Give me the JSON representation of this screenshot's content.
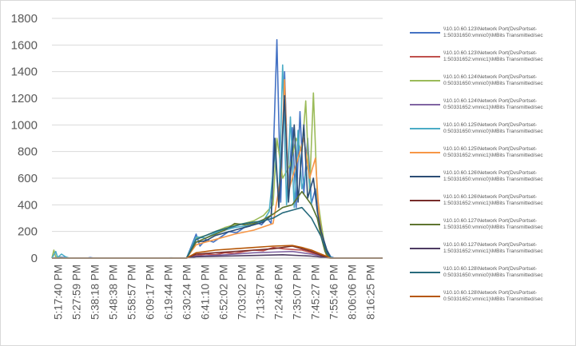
{
  "chart_data": {
    "type": "line",
    "title": "",
    "xlabel": "",
    "ylabel": "",
    "ylim": [
      0,
      1800
    ],
    "yticks": [
      0,
      200,
      400,
      600,
      800,
      1000,
      1200,
      1400,
      1600,
      1800
    ],
    "grid": "horizontal",
    "legend_position": "right",
    "x_tick_labels": [
      "5:17:40 PM",
      "5:27:59 PM",
      "5:38:18 PM",
      "5:48:38 PM",
      "5:58:57 PM",
      "6:09:17 PM",
      "6:19:44 PM",
      "6:30:24 PM",
      "6:41:10 PM",
      "6:52:02 PM",
      "7:03:02 PM",
      "7:13:57 PM",
      "7:24:46 PM",
      "7:35:07 PM",
      "7:45:27 PM",
      "7:55:46 PM",
      "8:06:06 PM",
      "8:16:25 PM"
    ],
    "series": [
      {
        "name": "\\\\10.10.60.123\\Network Port(DvsPortset-1:50331650:vmnic0)\\MBits Transmitted/sec",
        "color": "#4472c4",
        "points": [
          [
            0,
            0
          ],
          [
            4,
            8
          ],
          [
            6,
            5
          ],
          [
            10,
            0
          ],
          [
            14,
            0
          ],
          [
            18,
            0
          ],
          [
            20,
            4
          ],
          [
            22,
            0
          ],
          [
            26,
            0
          ],
          [
            30,
            0
          ],
          [
            34,
            0
          ],
          [
            38,
            0
          ],
          [
            42,
            0
          ],
          [
            46,
            0
          ],
          [
            50,
            0
          ],
          [
            54,
            0
          ],
          [
            58,
            0
          ],
          [
            62,
            2
          ],
          [
            66,
            0
          ],
          [
            70,
            0
          ],
          [
            75,
            180
          ],
          [
            77,
            90
          ],
          [
            80,
            140
          ],
          [
            84,
            120
          ],
          [
            88,
            160
          ],
          [
            92,
            200
          ],
          [
            96,
            190
          ],
          [
            100,
            230
          ],
          [
            103,
            240
          ],
          [
            106,
            270
          ],
          [
            109,
            250
          ],
          [
            112,
            300
          ],
          [
            114,
            260
          ],
          [
            117,
            1640
          ],
          [
            119,
            420
          ],
          [
            121,
            1400
          ],
          [
            123,
            500
          ],
          [
            125,
            980
          ],
          [
            127,
            380
          ],
          [
            129,
            1100
          ],
          [
            131,
            480
          ],
          [
            133,
            900
          ],
          [
            135,
            410
          ],
          [
            137,
            520
          ],
          [
            139,
            300
          ],
          [
            141,
            120
          ],
          [
            143,
            60
          ],
          [
            145,
            10
          ],
          [
            147,
            0
          ],
          [
            160,
            0
          ],
          [
            172,
            0
          ]
        ]
      },
      {
        "name": "\\\\10.10.60.123\\Network Port(DvsPortset-1:50331652:vmnic1)\\MBits Transmitted/sec",
        "color": "#c0504d",
        "points": [
          [
            0,
            0
          ],
          [
            10,
            0
          ],
          [
            30,
            0
          ],
          [
            50,
            0
          ],
          [
            70,
            0
          ],
          [
            75,
            20
          ],
          [
            80,
            30
          ],
          [
            85,
            25
          ],
          [
            90,
            40
          ],
          [
            95,
            35
          ],
          [
            100,
            50
          ],
          [
            105,
            60
          ],
          [
            110,
            55
          ],
          [
            115,
            80
          ],
          [
            120,
            70
          ],
          [
            125,
            65
          ],
          [
            130,
            60
          ],
          [
            135,
            40
          ],
          [
            140,
            20
          ],
          [
            145,
            0
          ],
          [
            160,
            0
          ],
          [
            172,
            0
          ]
        ]
      },
      {
        "name": "\\\\10.10.60.124\\Network Port(DvsPortset-0:50331650:vmnic0)\\MBits Transmitted/sec",
        "color": "#9bbb59",
        "points": [
          [
            0,
            0
          ],
          [
            1,
            60
          ],
          [
            2,
            10
          ],
          [
            4,
            5
          ],
          [
            6,
            0
          ],
          [
            10,
            0
          ],
          [
            30,
            0
          ],
          [
            50,
            0
          ],
          [
            70,
            0
          ],
          [
            75,
            150
          ],
          [
            80,
            170
          ],
          [
            85,
            200
          ],
          [
            90,
            230
          ],
          [
            95,
            250
          ],
          [
            100,
            260
          ],
          [
            105,
            280
          ],
          [
            110,
            320
          ],
          [
            115,
            400
          ],
          [
            117,
            900
          ],
          [
            120,
            600
          ],
          [
            124,
            700
          ],
          [
            127,
            900
          ],
          [
            130,
            800
          ],
          [
            132,
            1180
          ],
          [
            134,
            500
          ],
          [
            136,
            1240
          ],
          [
            138,
            460
          ],
          [
            140,
            260
          ],
          [
            142,
            80
          ],
          [
            144,
            10
          ],
          [
            146,
            0
          ],
          [
            160,
            0
          ],
          [
            172,
            0
          ]
        ]
      },
      {
        "name": "\\\\10.10.60.124\\Network Port(DvsPortset-0:50331652:vmnic1)\\MBits Transmitted/sec",
        "color": "#8064a2",
        "points": [
          [
            0,
            0
          ],
          [
            30,
            0
          ],
          [
            70,
            0
          ],
          [
            75,
            15
          ],
          [
            85,
            20
          ],
          [
            95,
            30
          ],
          [
            105,
            40
          ],
          [
            115,
            45
          ],
          [
            125,
            50
          ],
          [
            135,
            30
          ],
          [
            140,
            15
          ],
          [
            145,
            0
          ],
          [
            172,
            0
          ]
        ]
      },
      {
        "name": "\\\\10.10.60.125\\Network Port(DvsPortset-0:50331650:vmnic0)\\MBits Transmitted/sec",
        "color": "#4bacc6",
        "points": [
          [
            0,
            0
          ],
          [
            2,
            50
          ],
          [
            3,
            5
          ],
          [
            5,
            30
          ],
          [
            7,
            10
          ],
          [
            9,
            0
          ],
          [
            14,
            0
          ],
          [
            30,
            0
          ],
          [
            50,
            0
          ],
          [
            70,
            0
          ],
          [
            75,
            160
          ],
          [
            80,
            150
          ],
          [
            85,
            190
          ],
          [
            90,
            210
          ],
          [
            95,
            230
          ],
          [
            100,
            240
          ],
          [
            105,
            250
          ],
          [
            110,
            280
          ],
          [
            113,
            350
          ],
          [
            116,
            800
          ],
          [
            118,
            420
          ],
          [
            120,
            1450
          ],
          [
            122,
            400
          ],
          [
            124,
            1060
          ],
          [
            126,
            380
          ],
          [
            128,
            960
          ],
          [
            130,
            520
          ],
          [
            133,
            700
          ],
          [
            135,
            400
          ],
          [
            138,
            300
          ],
          [
            140,
            180
          ],
          [
            142,
            90
          ],
          [
            144,
            20
          ],
          [
            146,
            0
          ],
          [
            150,
            0
          ],
          [
            172,
            0
          ]
        ]
      },
      {
        "name": "\\\\10.10.60.125\\Network Port(DvsPortset-0:50331652:vmnic1)\\MBits Transmitted/sec",
        "color": "#f79646",
        "points": [
          [
            0,
            0
          ],
          [
            30,
            0
          ],
          [
            70,
            0
          ],
          [
            75,
            100
          ],
          [
            85,
            140
          ],
          [
            95,
            180
          ],
          [
            105,
            210
          ],
          [
            115,
            260
          ],
          [
            119,
            600
          ],
          [
            121,
            1340
          ],
          [
            123,
            500
          ],
          [
            127,
            700
          ],
          [
            131,
            900
          ],
          [
            134,
            600
          ],
          [
            137,
            750
          ],
          [
            139,
            300
          ],
          [
            141,
            120
          ],
          [
            143,
            0
          ],
          [
            172,
            0
          ]
        ]
      },
      {
        "name": "\\\\10.10.60.126\\Network Port(DvsPortset-1:50331650:vmnic0)\\MBits Transmitted/sec",
        "color": "#2c4d75",
        "points": [
          [
            0,
            0
          ],
          [
            30,
            0
          ],
          [
            70,
            0
          ],
          [
            75,
            120
          ],
          [
            80,
            130
          ],
          [
            85,
            170
          ],
          [
            90,
            190
          ],
          [
            95,
            210
          ],
          [
            100,
            230
          ],
          [
            105,
            250
          ],
          [
            110,
            270
          ],
          [
            114,
            320
          ],
          [
            116,
            900
          ],
          [
            118,
            380
          ],
          [
            121,
            1220
          ],
          [
            123,
            420
          ],
          [
            126,
            1000
          ],
          [
            128,
            420
          ],
          [
            131,
            1000
          ],
          [
            133,
            450
          ],
          [
            136,
            600
          ],
          [
            138,
            350
          ],
          [
            140,
            200
          ],
          [
            143,
            60
          ],
          [
            145,
            0
          ],
          [
            172,
            0
          ]
        ]
      },
      {
        "name": "\\\\10.10.60.126\\Network Port(DvsPortset-1:50331652:vmnic1)\\MBits Transmitted/sec",
        "color": "#772c2a",
        "points": [
          [
            0,
            0
          ],
          [
            30,
            0
          ],
          [
            70,
            0
          ],
          [
            75,
            30
          ],
          [
            85,
            40
          ],
          [
            95,
            50
          ],
          [
            105,
            60
          ],
          [
            115,
            70
          ],
          [
            125,
            90
          ],
          [
            130,
            70
          ],
          [
            135,
            50
          ],
          [
            140,
            20
          ],
          [
            145,
            0
          ],
          [
            172,
            0
          ]
        ]
      },
      {
        "name": "\\\\10.10.60.127\\Network Port(DvsPortset-1:50331650:vmnic0)\\MBits Transmitted/sec",
        "color": "#5f7530",
        "points": [
          [
            0,
            0
          ],
          [
            30,
            0
          ],
          [
            70,
            0
          ],
          [
            75,
            120
          ],
          [
            80,
            150
          ],
          [
            85,
            180
          ],
          [
            90,
            210
          ],
          [
            95,
            260
          ],
          [
            100,
            250
          ],
          [
            105,
            260
          ],
          [
            110,
            290
          ],
          [
            115,
            330
          ],
          [
            120,
            380
          ],
          [
            125,
            400
          ],
          [
            130,
            500
          ],
          [
            135,
            400
          ],
          [
            138,
            300
          ],
          [
            140,
            160
          ],
          [
            142,
            50
          ],
          [
            144,
            0
          ],
          [
            172,
            0
          ]
        ]
      },
      {
        "name": "\\\\10.10.60.127\\Network Port(DvsPortset-1:50331652:vmnic1)\\MBits Transmitted/sec",
        "color": "#4d3b62",
        "points": [
          [
            0,
            0
          ],
          [
            30,
            0
          ],
          [
            70,
            0
          ],
          [
            75,
            10
          ],
          [
            90,
            15
          ],
          [
            105,
            20
          ],
          [
            120,
            25
          ],
          [
            135,
            15
          ],
          [
            145,
            0
          ],
          [
            172,
            0
          ]
        ]
      },
      {
        "name": "\\\\10.10.60.128\\Network Port(DvsPortset-0:50331650:vmnic0)\\MBits Transmitted/sec",
        "color": "#276a7c",
        "points": [
          [
            0,
            0
          ],
          [
            30,
            0
          ],
          [
            70,
            0
          ],
          [
            75,
            140
          ],
          [
            80,
            170
          ],
          [
            85,
            200
          ],
          [
            90,
            220
          ],
          [
            95,
            240
          ],
          [
            100,
            260
          ],
          [
            105,
            270
          ],
          [
            110,
            280
          ],
          [
            115,
            300
          ],
          [
            120,
            340
          ],
          [
            125,
            360
          ],
          [
            130,
            380
          ],
          [
            135,
            300
          ],
          [
            140,
            160
          ],
          [
            143,
            40
          ],
          [
            145,
            0
          ],
          [
            172,
            0
          ]
        ]
      },
      {
        "name": "\\\\10.10.60.128\\Network Port(DvsPortset-0:50331652:vmnic1)\\MBits Transmitted/sec",
        "color": "#b65708",
        "points": [
          [
            0,
            0
          ],
          [
            30,
            0
          ],
          [
            70,
            0
          ],
          [
            75,
            40
          ],
          [
            85,
            60
          ],
          [
            95,
            70
          ],
          [
            105,
            80
          ],
          [
            115,
            90
          ],
          [
            125,
            95
          ],
          [
            130,
            80
          ],
          [
            135,
            60
          ],
          [
            140,
            30
          ],
          [
            145,
            0
          ],
          [
            172,
            0
          ]
        ]
      }
    ]
  }
}
